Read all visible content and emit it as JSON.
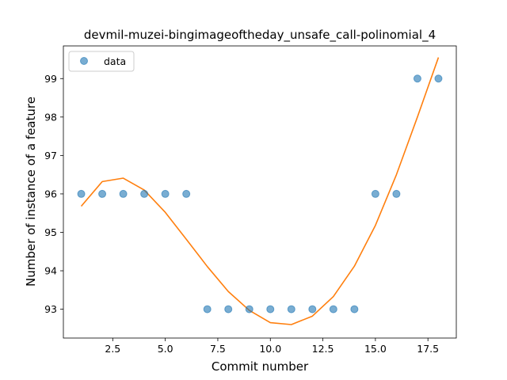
{
  "chart_data": {
    "type": "scatter",
    "title": "devmil-muzei-bingimageoftheday_unsafe_call-polinomial_4",
    "xlabel": "Commit number",
    "ylabel": "Number of instance of a feature",
    "xlim": [
      0.15,
      18.85
    ],
    "ylim": [
      92.25,
      99.85
    ],
    "xticks": [
      "2.5",
      "5.0",
      "7.5",
      "10.0",
      "12.5",
      "15.0",
      "17.5"
    ],
    "yticks": [
      "93",
      "94",
      "95",
      "96",
      "97",
      "98",
      "99"
    ],
    "grid": false,
    "legend": {
      "position": "top-left",
      "entries": [
        "data"
      ]
    },
    "series": [
      {
        "name": "data",
        "kind": "scatter",
        "color": "#1f77b4",
        "x": [
          1,
          2,
          3,
          4,
          5,
          6,
          7,
          8,
          9,
          10,
          11,
          12,
          13,
          14,
          15,
          16,
          17,
          18
        ],
        "y": [
          96,
          96,
          96,
          96,
          96,
          96,
          93,
          93,
          93,
          93,
          93,
          93,
          93,
          93,
          96,
          96,
          99,
          99
        ]
      },
      {
        "kind": "line",
        "color": "#ff7f0e",
        "x": [
          1,
          2,
          3,
          4,
          5,
          6,
          7,
          8,
          9,
          10,
          11,
          12,
          13,
          14,
          15,
          16,
          17,
          18
        ],
        "y": [
          95.68,
          96.32,
          96.41,
          96.1,
          95.52,
          94.82,
          94.11,
          93.46,
          92.97,
          92.65,
          92.6,
          92.82,
          93.33,
          94.12,
          95.18,
          96.5,
          98.0,
          99.55
        ]
      }
    ]
  }
}
